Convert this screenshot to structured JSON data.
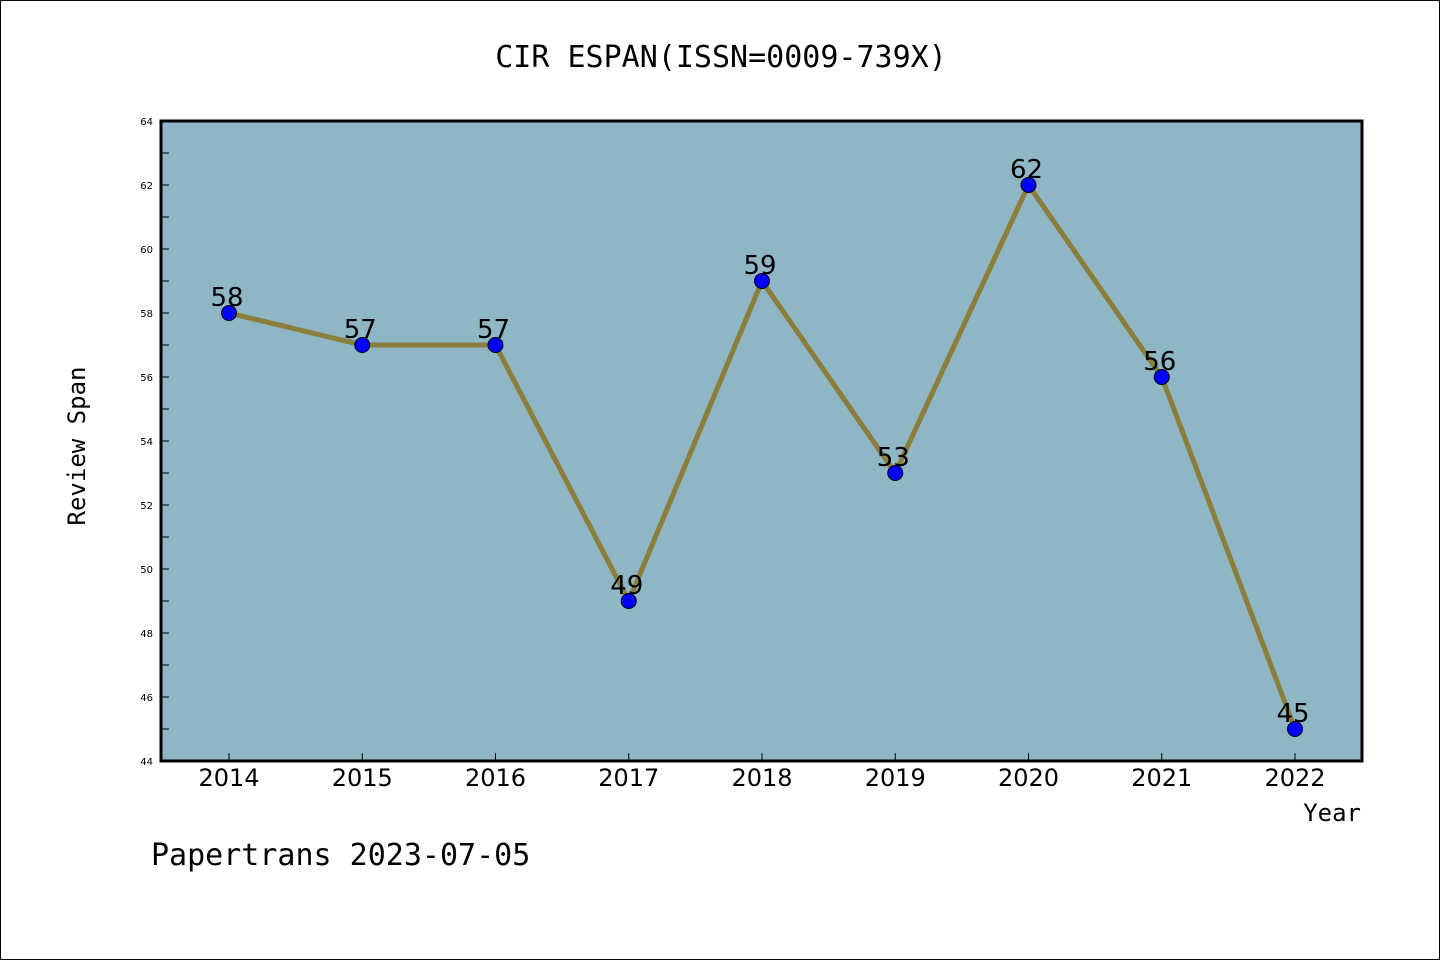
{
  "chart_data": {
    "type": "line",
    "title": "CIR ESPAN(ISSN=0009-739X)",
    "xlabel": "Year",
    "ylabel": "Review Span",
    "categories": [
      "2014",
      "2015",
      "2016",
      "2017",
      "2018",
      "2019",
      "2020",
      "2021",
      "2022"
    ],
    "values": [
      58,
      57,
      57,
      49,
      59,
      53,
      62,
      56,
      45
    ],
    "data_labels": [
      "58",
      "57",
      "57",
      "49",
      "59",
      "53",
      "62",
      "56",
      "45"
    ],
    "ylim": [
      44,
      64
    ],
    "yticks": [
      "44",
      "46",
      "48",
      "50",
      "52",
      "54",
      "56",
      "58",
      "60",
      "62",
      "64"
    ],
    "grid": false,
    "legend": "none",
    "footer": "Papertrans 2023-07-05",
    "colors": {
      "plot_background": "#8fb6c4",
      "line": "#8b7d3a",
      "marker": "#0000ff"
    }
  }
}
